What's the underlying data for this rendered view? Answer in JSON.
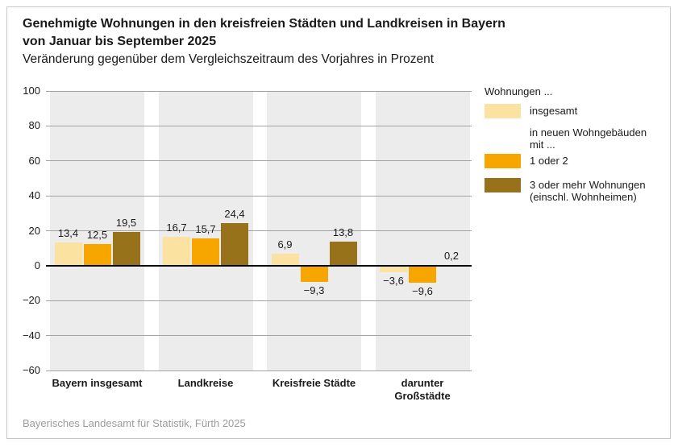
{
  "header": {
    "title_line1": "Genehmigte Wohnungen in den kreisfreien Städten und Landkreisen in Bayern",
    "title_line2": "von Januar bis September 2025",
    "subtitle": "Veränderung gegenüber dem Vergleichszeitraum des Vorjahres in Prozent"
  },
  "chart_data": {
    "type": "bar",
    "unit": "Prozent",
    "categories": [
      "Bayern insgesamt",
      "Landkreise",
      "Kreisfreie Städte",
      "darunter\nGroßstädte"
    ],
    "series": [
      {
        "name": "insgesamt",
        "color": "#FBE2A1",
        "values": [
          13.4,
          16.7,
          6.9,
          -3.6
        ],
        "labels": [
          "13,4",
          "16,7",
          "6,9",
          "−3,6"
        ]
      },
      {
        "name": "1 oder 2",
        "color": "#F7A600",
        "values": [
          12.5,
          15.7,
          -9.3,
          -9.6
        ],
        "labels": [
          "12,5",
          "15,7",
          "−9,3",
          "−9,6"
        ]
      },
      {
        "name": "3 oder mehr Wohnungen (einschl. Wohnheimen)",
        "color": "#97721B",
        "values": [
          19.5,
          24.4,
          13.8,
          0.2
        ],
        "labels": [
          "19,5",
          "24,4",
          "13,8",
          "0,2"
        ]
      }
    ],
    "ylim": [
      -60,
      100
    ],
    "yticks": [
      100,
      80,
      60,
      40,
      20,
      0,
      -20,
      -40,
      -60
    ],
    "ytick_labels": [
      "100",
      "80",
      "60",
      "40",
      "20",
      "0",
      "−20",
      "−40",
      "−60"
    ],
    "grid": true,
    "legend_position": "right"
  },
  "legend": {
    "title": "Wohnungen ...",
    "items": [
      {
        "swatch": "#FBE2A1",
        "label": "insgesamt"
      },
      {
        "swatch": null,
        "label": "in neuen Wohngebäuden\nmit ..."
      },
      {
        "swatch": "#F7A600",
        "label": "1 oder 2"
      },
      {
        "swatch": "#97721B",
        "label": "3 oder mehr Wohnungen\n(einschl. Wohnheimen)"
      }
    ]
  },
  "footer": {
    "source": "Bayerisches Landesamt für Statistik, Fürth 2025"
  },
  "colors": {
    "band": "#ECECEC",
    "gridline": "#A3A3A3",
    "zero_line": "#000000",
    "text": "#1A1A1A",
    "footer_text": "#9C9C9C",
    "frame_border": "#C9C9C9",
    "background": "#FFFFFF"
  }
}
